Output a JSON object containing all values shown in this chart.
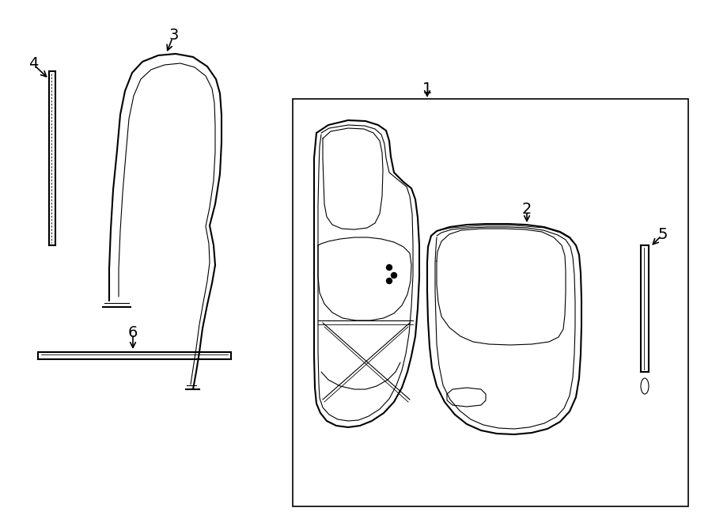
{
  "background_color": "#ffffff",
  "line_color": "#000000",
  "lw_main": 1.5,
  "lw_thin": 0.8,
  "lw_inner": 0.6
}
